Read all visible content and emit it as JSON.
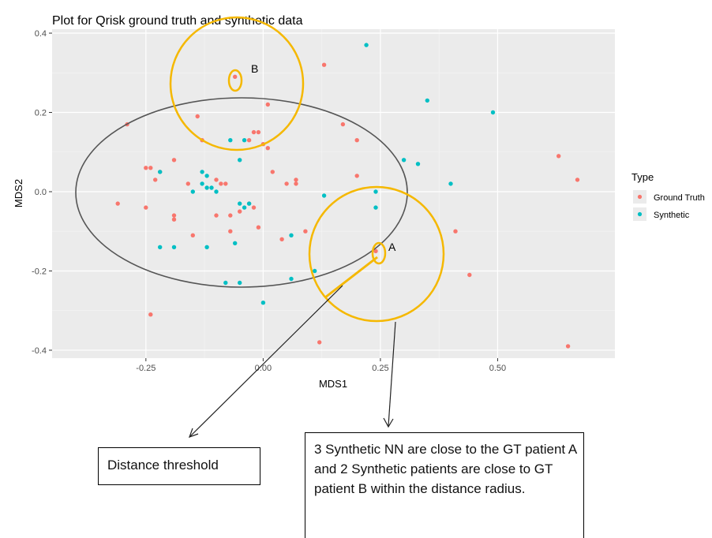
{
  "chart_data": {
    "type": "scatter",
    "title": "Plot for Qrisk ground truth and synthetic data",
    "xlabel": "MDS1",
    "ylabel": "MDS2",
    "xlim": [
      -0.45,
      0.75
    ],
    "ylim": [
      -0.42,
      0.41
    ],
    "x_ticks": [
      -0.25,
      0.0,
      0.25,
      0.5
    ],
    "x_tick_labels": [
      "-0.25",
      "0.00",
      "0.25",
      "0.50"
    ],
    "y_ticks": [
      -0.4,
      -0.2,
      0.0,
      0.2,
      0.4
    ],
    "y_tick_labels": [
      "-0.4",
      "-0.2",
      "0.0",
      "0.2",
      "0.4"
    ],
    "grid": true,
    "legend": {
      "title": "Type",
      "placement": "right"
    },
    "series": [
      {
        "name": "Ground Truth",
        "color": "#F8766D",
        "points": [
          [
            -0.06,
            0.29
          ],
          [
            0.13,
            0.32
          ],
          [
            0.01,
            0.22
          ],
          [
            -0.29,
            0.17
          ],
          [
            -0.14,
            0.19
          ],
          [
            -0.13,
            0.13
          ],
          [
            -0.02,
            0.15
          ],
          [
            -0.01,
            0.15
          ],
          [
            -0.03,
            0.13
          ],
          [
            0.0,
            0.12
          ],
          [
            0.01,
            0.11
          ],
          [
            0.17,
            0.17
          ],
          [
            0.2,
            0.13
          ],
          [
            0.2,
            0.04
          ],
          [
            -0.25,
            0.06
          ],
          [
            -0.24,
            0.06
          ],
          [
            -0.23,
            0.03
          ],
          [
            -0.22,
            0.05
          ],
          [
            -0.19,
            0.08
          ],
          [
            -0.16,
            0.02
          ],
          [
            -0.1,
            0.03
          ],
          [
            -0.09,
            0.02
          ],
          [
            -0.08,
            0.02
          ],
          [
            -0.07,
            -0.06
          ],
          [
            -0.05,
            -0.05
          ],
          [
            -0.03,
            -0.03
          ],
          [
            -0.02,
            -0.04
          ],
          [
            0.02,
            0.05
          ],
          [
            0.05,
            0.02
          ],
          [
            0.07,
            0.02
          ],
          [
            0.07,
            0.03
          ],
          [
            -0.31,
            -0.03
          ],
          [
            -0.25,
            -0.04
          ],
          [
            -0.19,
            -0.06
          ],
          [
            -0.19,
            -0.07
          ],
          [
            -0.15,
            -0.11
          ],
          [
            -0.1,
            -0.06
          ],
          [
            -0.07,
            -0.1
          ],
          [
            -0.01,
            -0.09
          ],
          [
            0.04,
            -0.12
          ],
          [
            0.09,
            -0.1
          ],
          [
            0.24,
            -0.15
          ],
          [
            0.41,
            -0.1
          ],
          [
            0.44,
            -0.21
          ],
          [
            0.63,
            0.09
          ],
          [
            0.67,
            0.03
          ],
          [
            0.65,
            -0.39
          ],
          [
            -0.24,
            -0.31
          ],
          [
            0.12,
            -0.38
          ]
        ]
      },
      {
        "name": "Synthetic",
        "color": "#00BFC4",
        "points": [
          [
            0.22,
            0.37
          ],
          [
            0.35,
            0.23
          ],
          [
            0.49,
            0.2
          ],
          [
            -0.07,
            0.13
          ],
          [
            -0.04,
            0.13
          ],
          [
            -0.05,
            0.08
          ],
          [
            0.3,
            0.08
          ],
          [
            0.33,
            0.07
          ],
          [
            -0.22,
            0.05
          ],
          [
            -0.13,
            0.05
          ],
          [
            -0.12,
            0.04
          ],
          [
            -0.13,
            0.02
          ],
          [
            -0.12,
            0.01
          ],
          [
            -0.11,
            0.01
          ],
          [
            -0.1,
            0.0
          ],
          [
            -0.15,
            0.0
          ],
          [
            0.13,
            -0.01
          ],
          [
            0.24,
            0.0
          ],
          [
            0.4,
            0.02
          ],
          [
            -0.05,
            -0.03
          ],
          [
            -0.04,
            -0.04
          ],
          [
            -0.03,
            -0.03
          ],
          [
            0.24,
            -0.04
          ],
          [
            -0.22,
            -0.14
          ],
          [
            -0.19,
            -0.14
          ],
          [
            -0.12,
            -0.14
          ],
          [
            -0.06,
            -0.13
          ],
          [
            0.06,
            -0.11
          ],
          [
            0.11,
            -0.2
          ],
          [
            0.06,
            -0.22
          ],
          [
            -0.08,
            -0.23
          ],
          [
            -0.05,
            -0.23
          ],
          [
            0.0,
            -0.28
          ]
        ]
      }
    ],
    "annotations": [
      "A",
      "B"
    ]
  },
  "callouts": {
    "threshold": "Distance threshold",
    "description": "3 Synthetic NN are close to the GT patient A and 2 Synthetic patients are close to GT patient B within the distance radius."
  },
  "colors": {
    "panel_background": "#EBEBEB",
    "grid": "#FFFFFF",
    "circle": "#F5B800",
    "ellipse": "#555555"
  }
}
